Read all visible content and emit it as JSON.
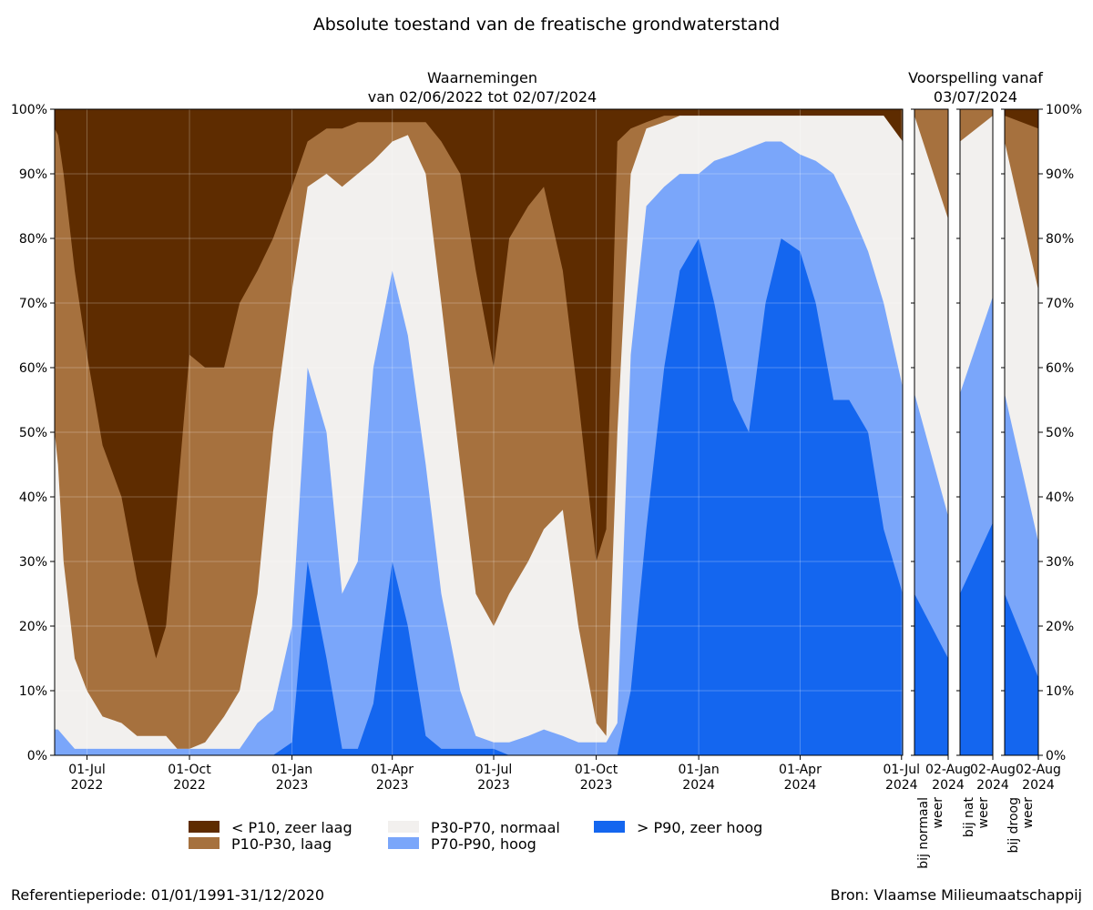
{
  "title": "Absolute toestand van de freatische grondwaterstand",
  "observations_title_line1": "Waarnemingen",
  "observations_title_line2": "van 02/06/2022 tot 02/07/2024",
  "forecast_title_line1": "Voorspelling vanaf",
  "forecast_title_line2": "03/07/2024",
  "footer_left": "Referentieperiode: 01/01/1991-31/12/2020",
  "footer_right": "Bron: Vlaamse Milieumaatschappij",
  "colors": {
    "zeer_laag": "#5e2c00",
    "laag": "#a6713e",
    "normaal": "#f2f0ee",
    "hoog": "#7aa6fa",
    "zeer_hoog": "#1466ef"
  },
  "chart_data": [
    {
      "type": "area",
      "stacked": true,
      "title": "Waarnemingen van 02/06/2022 tot 02/07/2024",
      "ylim": [
        0,
        100
      ],
      "y_unit": "%",
      "y_ticks": [
        "0%",
        "10%",
        "20%",
        "30%",
        "40%",
        "50%",
        "60%",
        "70%",
        "80%",
        "90%",
        "100%"
      ],
      "x_ticks": [
        {
          "date": "2022-07-01",
          "label1": "01-Jul",
          "label2": "2022"
        },
        {
          "date": "2022-10-01",
          "label1": "01-Oct",
          "label2": "2022"
        },
        {
          "date": "2023-01-01",
          "label1": "01-Jan",
          "label2": "2023"
        },
        {
          "date": "2023-04-01",
          "label1": "01-Apr",
          "label2": "2023"
        },
        {
          "date": "2023-07-01",
          "label1": "01-Jul",
          "label2": "2023"
        },
        {
          "date": "2023-10-01",
          "label1": "01-Oct",
          "label2": "2023"
        },
        {
          "date": "2024-01-01",
          "label1": "01-Jan",
          "label2": "2024"
        },
        {
          "date": "2024-04-01",
          "label1": "01-Apr",
          "label2": "2024"
        },
        {
          "date": "2024-07-01",
          "label1": "01-Jul",
          "label2": "2024"
        }
      ],
      "x_range": [
        "2022-06-02",
        "2024-07-02"
      ],
      "grid": true,
      "series_cumulative": [
        "> P90, zeer hoog",
        "P70-P90, hoog",
        "P30-P70, normaal",
        "P10-P30, laag"
      ],
      "x": [
        "2022-06-02",
        "2022-06-05",
        "2022-06-10",
        "2022-06-20",
        "2022-07-01",
        "2022-07-15",
        "2022-08-01",
        "2022-08-15",
        "2022-09-01",
        "2022-09-10",
        "2022-09-20",
        "2022-10-01",
        "2022-10-15",
        "2022-11-01",
        "2022-11-15",
        "2022-12-01",
        "2022-12-15",
        "2023-01-01",
        "2023-01-15",
        "2023-02-01",
        "2023-02-15",
        "2023-03-01",
        "2023-03-15",
        "2023-04-01",
        "2023-04-15",
        "2023-05-01",
        "2023-05-15",
        "2023-06-01",
        "2023-06-15",
        "2023-07-01",
        "2023-07-15",
        "2023-08-01",
        "2023-08-15",
        "2023-09-01",
        "2023-09-15",
        "2023-10-01",
        "2023-10-10",
        "2023-10-20",
        "2023-11-01",
        "2023-11-15",
        "2023-12-01",
        "2023-12-15",
        "2024-01-01",
        "2024-01-15",
        "2024-02-01",
        "2024-02-15",
        "2024-03-01",
        "2024-03-15",
        "2024-04-01",
        "2024-04-15",
        "2024-05-01",
        "2024-05-15",
        "2024-06-01",
        "2024-06-15",
        "2024-07-02"
      ],
      "cum_zeer_hoog": [
        0,
        0,
        0,
        0,
        0,
        0,
        0,
        0,
        0,
        0,
        0,
        0,
        0,
        0,
        0,
        0,
        0,
        2,
        30,
        15,
        1,
        1,
        8,
        30,
        20,
        3,
        1,
        1,
        1,
        1,
        0,
        0,
        0,
        0,
        0,
        0,
        0,
        0,
        10,
        35,
        60,
        75,
        80,
        70,
        55,
        50,
        70,
        80,
        78,
        70,
        55,
        55,
        50,
        35,
        25
      ],
      "cum_hoog": [
        4,
        4,
        3,
        1,
        1,
        1,
        1,
        1,
        1,
        1,
        1,
        1,
        1,
        1,
        1,
        5,
        7,
        20,
        60,
        50,
        25,
        30,
        60,
        75,
        65,
        45,
        25,
        10,
        3,
        2,
        2,
        3,
        4,
        3,
        2,
        2,
        2,
        5,
        62,
        85,
        88,
        90,
        90,
        92,
        93,
        94,
        95,
        95,
        93,
        92,
        90,
        85,
        78,
        70,
        57
      ],
      "cum_normaal": [
        50,
        45,
        30,
        15,
        10,
        6,
        5,
        3,
        3,
        3,
        1,
        1,
        2,
        6,
        10,
        25,
        50,
        72,
        88,
        90,
        88,
        90,
        92,
        95,
        96,
        90,
        70,
        45,
        25,
        20,
        25,
        30,
        35,
        38,
        20,
        5,
        3,
        50,
        90,
        97,
        98,
        99,
        99,
        99,
        99,
        99,
        99,
        99,
        99,
        99,
        99,
        99,
        99,
        99,
        95
      ],
      "cum_laag": [
        97,
        96,
        90,
        75,
        62,
        48,
        40,
        27,
        15,
        20,
        40,
        62,
        60,
        60,
        70,
        75,
        80,
        88,
        95,
        97,
        97,
        98,
        98,
        98,
        98,
        98,
        95,
        90,
        75,
        60,
        80,
        85,
        88,
        75,
        55,
        30,
        35,
        95,
        97,
        98,
        99,
        99,
        99,
        99,
        99,
        99,
        99,
        99,
        99,
        99,
        99,
        99,
        99,
        99,
        95
      ]
    },
    {
      "type": "bar",
      "stacked": true,
      "title": "Voorspelling vanaf 03/07/2024",
      "panels": [
        {
          "name": "bij normaal weer",
          "x_start": "2024-07-03",
          "x_tick_label1": "02-Aug",
          "x_tick_label2": "2024",
          "cum_zeer_hoog": [
            25,
            15
          ],
          "cum_hoog": [
            56,
            37
          ],
          "cum_normaal": [
            99,
            83
          ],
          "cum_laag": [
            100,
            100
          ]
        },
        {
          "name": "bij nat weer",
          "x_start": "2024-07-03",
          "x_tick_label1": "02-Aug",
          "x_tick_label2": "2024",
          "cum_zeer_hoog": [
            25,
            36
          ],
          "cum_hoog": [
            56,
            71
          ],
          "cum_normaal": [
            95,
            99
          ],
          "cum_laag": [
            100,
            100
          ]
        },
        {
          "name": "bij droog weer",
          "x_start": "2024-07-03",
          "x_tick_label1": "02-Aug",
          "x_tick_label2": "2024",
          "cum_zeer_hoog": [
            25,
            12
          ],
          "cum_hoog": [
            56,
            33
          ],
          "cum_normaal": [
            95,
            72
          ],
          "cum_laag": [
            99,
            97
          ]
        }
      ]
    }
  ],
  "legend": [
    {
      "key": "zeer_laag",
      "label": "< P10, zeer laag"
    },
    {
      "key": "laag",
      "label": "P10-P30, laag"
    },
    {
      "key": "normaal",
      "label": "P30-P70, normaal"
    },
    {
      "key": "hoog",
      "label": "P70-P90, hoog"
    },
    {
      "key": "zeer_hoog",
      "label": "> P90, zeer hoog"
    }
  ]
}
